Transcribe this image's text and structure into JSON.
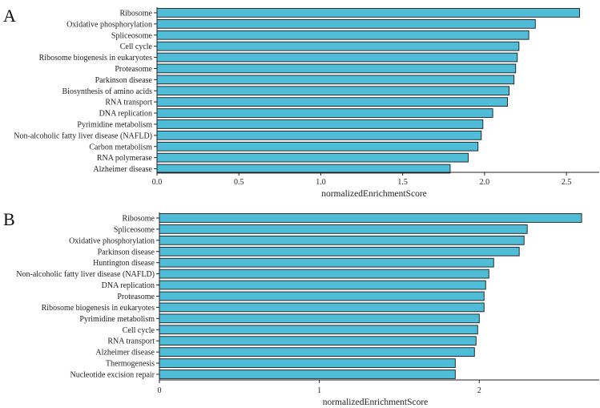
{
  "chart_data": [
    {
      "type": "bar",
      "orientation": "horizontal",
      "panel_label": "A",
      "xlabel": "normalizedEnrichmentScore",
      "xlim": [
        0,
        2.7
      ],
      "xticks": [
        0.0,
        0.5,
        1.0,
        1.5,
        2.0,
        2.5
      ],
      "xtick_labels": [
        "0.0",
        "0.5",
        "1.0",
        "1.5",
        "2.0",
        "2.5"
      ],
      "bar_color": "#4fbcd8",
      "categories": [
        "Ribosome",
        "Oxidative phosphorylation",
        "Spliceosome",
        "Cell cycle",
        "Ribosome biogenesis in eukaryotes",
        "Proteasome",
        "Parkinson disease",
        "Biosynthesis of amino acids",
        "RNA transport",
        "DNA replication",
        "Pyrimidine metabolism",
        "Non-alcoholic fatty liver disease (NAFLD)",
        "Carbon metabolism",
        "RNA polymerase",
        "Alzheimer disease"
      ],
      "values": [
        2.58,
        2.31,
        2.27,
        2.21,
        2.2,
        2.19,
        2.18,
        2.15,
        2.14,
        2.05,
        1.99,
        1.98,
        1.96,
        1.9,
        1.79
      ]
    },
    {
      "type": "bar",
      "orientation": "horizontal",
      "panel_label": "B",
      "xlabel": "normalizedEnrichmentScore",
      "xlim": [
        0,
        2.75
      ],
      "xticks": [
        0,
        1,
        2
      ],
      "xtick_labels": [
        "0",
        "1",
        "2"
      ],
      "bar_color": "#4fbcd8",
      "categories": [
        "Ribosome",
        "Spliceosome",
        "Oxidative phosphorylation",
        "Parkinson disease",
        "Huntington disease",
        "Non-alcoholic fatty liver disease (NAFLD)",
        "DNA replication",
        "Proteasome",
        "Ribosome biogenesis in eukaryotes",
        "Pyrimidine metabolism",
        "Cell cycle",
        "RNA transport",
        "Alzheimer disease",
        "Thermogenesis",
        "Nucleotide excision repair"
      ],
      "values": [
        2.64,
        2.3,
        2.28,
        2.25,
        2.09,
        2.06,
        2.04,
        2.03,
        2.03,
        2.0,
        1.99,
        1.98,
        1.97,
        1.85,
        1.85
      ]
    }
  ]
}
